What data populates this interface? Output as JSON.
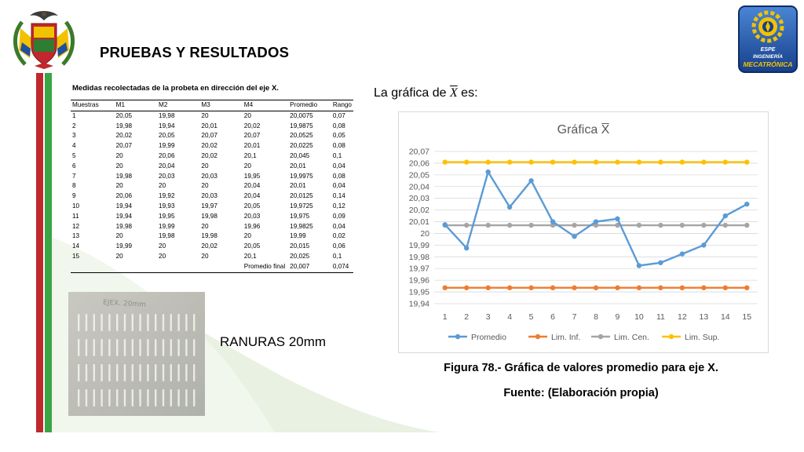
{
  "slide": {
    "title": "PRUEBAS Y RESULTADOS"
  },
  "colors": {
    "stripe_red": "#c1272d",
    "stripe_white": "#ffffff",
    "stripe_green": "#3aa544",
    "wave": "#e9f2e3",
    "promedio": "#5b9bd5",
    "lim_inf": "#ed7d31",
    "lim_cen": "#a5a5a5",
    "lim_sup": "#ffc000"
  },
  "logos": {
    "left": "university-coat-of-arms-icon",
    "right_lines": [
      "ESPE",
      "INGENIERÍA",
      "MECATRÓNICA"
    ]
  },
  "table": {
    "caption": "Medidas recolectadas de la probeta en dirección del eje X.",
    "headers": [
      "Muestras",
      "M1",
      "M2",
      "M3",
      "M4",
      "Promedio",
      "Rango"
    ],
    "rows": [
      [
        "1",
        "20,05",
        "19,98",
        "20",
        "20",
        "20,0075",
        "0,07"
      ],
      [
        "2",
        "19,98",
        "19,94",
        "20,01",
        "20,02",
        "19,9875",
        "0,08"
      ],
      [
        "3",
        "20,02",
        "20,05",
        "20,07",
        "20,07",
        "20,0525",
        "0,05"
      ],
      [
        "4",
        "20,07",
        "19,99",
        "20,02",
        "20,01",
        "20,0225",
        "0,08"
      ],
      [
        "5",
        "20",
        "20,06",
        "20,02",
        "20,1",
        "20,045",
        "0,1"
      ],
      [
        "6",
        "20",
        "20,04",
        "20",
        "20",
        "20,01",
        "0,04"
      ],
      [
        "7",
        "19,98",
        "20,03",
        "20,03",
        "19,95",
        "19,9975",
        "0,08"
      ],
      [
        "8",
        "20",
        "20",
        "20",
        "20,04",
        "20,01",
        "0,04"
      ],
      [
        "9",
        "20,06",
        "19,92",
        "20,03",
        "20,04",
        "20,0125",
        "0,14"
      ],
      [
        "10",
        "19,94",
        "19,93",
        "19,97",
        "20,05",
        "19,9725",
        "0,12"
      ],
      [
        "11",
        "19,94",
        "19,95",
        "19,98",
        "20,03",
        "19,975",
        "0,09"
      ],
      [
        "12",
        "19,98",
        "19,99",
        "20",
        "19,96",
        "19,9825",
        "0,04"
      ],
      [
        "13",
        "20",
        "19,98",
        "19,98",
        "20",
        "19,99",
        "0,02"
      ],
      [
        "14",
        "19,99",
        "20",
        "20,02",
        "20,05",
        "20,015",
        "0,06"
      ],
      [
        "15",
        "20",
        "20",
        "20",
        "20,1",
        "20,025",
        "0,1"
      ]
    ],
    "footer": {
      "label": "Promedio final",
      "promedio": "20,007",
      "rango": "0,074"
    }
  },
  "photo": {
    "handwritten_label": "EJEX. 20mm",
    "slot_count": 16
  },
  "photo_caption": "RANURAS 20mm",
  "chart_intro": {
    "before": "La gráfica de ",
    "symbol": "X",
    "after": " es:"
  },
  "chart_data": {
    "type": "line",
    "title": "Gráfica X̅",
    "x": [
      1,
      2,
      3,
      4,
      5,
      6,
      7,
      8,
      9,
      10,
      11,
      12,
      13,
      14,
      15
    ],
    "x_tick_labels": [
      "1",
      "2",
      "3",
      "4",
      "5",
      "6",
      "7",
      "8",
      "9",
      "10",
      "11",
      "12",
      "13",
      "14",
      "15"
    ],
    "ylim": [
      19.94,
      20.07
    ],
    "y_ticks": [
      19.94,
      19.95,
      19.96,
      19.97,
      19.98,
      19.99,
      20.0,
      20.01,
      20.02,
      20.03,
      20.04,
      20.05,
      20.06,
      20.07
    ],
    "y_tick_labels": [
      "19,94",
      "19,95",
      "19,96",
      "19,97",
      "19,98",
      "19,99",
      "20",
      "20,01",
      "20,02",
      "20,03",
      "20,04",
      "20,05",
      "20,06",
      "20,07"
    ],
    "grid": "horizontal",
    "legend_position": "bottom",
    "series": [
      {
        "name": "Promedio",
        "color": "#5b9bd5",
        "values": [
          20.0075,
          19.9875,
          20.0525,
          20.0225,
          20.045,
          20.01,
          19.9975,
          20.01,
          20.0125,
          19.9725,
          19.975,
          19.9825,
          19.99,
          20.015,
          20.025
        ]
      },
      {
        "name": "Lim. Inf.",
        "color": "#ed7d31",
        "values": [
          19.9536,
          19.9536,
          19.9536,
          19.9536,
          19.9536,
          19.9536,
          19.9536,
          19.9536,
          19.9536,
          19.9536,
          19.9536,
          19.9536,
          19.9536,
          19.9536,
          19.9536
        ]
      },
      {
        "name": "Lim. Cen.",
        "color": "#a5a5a5",
        "values": [
          20.007,
          20.007,
          20.007,
          20.007,
          20.007,
          20.007,
          20.007,
          20.007,
          20.007,
          20.007,
          20.007,
          20.007,
          20.007,
          20.007,
          20.007
        ]
      },
      {
        "name": "Lim. Sup.",
        "color": "#ffc000",
        "values": [
          20.0609,
          20.0609,
          20.0609,
          20.0609,
          20.0609,
          20.0609,
          20.0609,
          20.0609,
          20.0609,
          20.0609,
          20.0609,
          20.0609,
          20.0609,
          20.0609,
          20.0609
        ]
      }
    ]
  },
  "figure": {
    "caption": "Figura 78.- Gráfica de valores promedio para eje X.",
    "source": "Fuente: (Elaboración propia)"
  }
}
